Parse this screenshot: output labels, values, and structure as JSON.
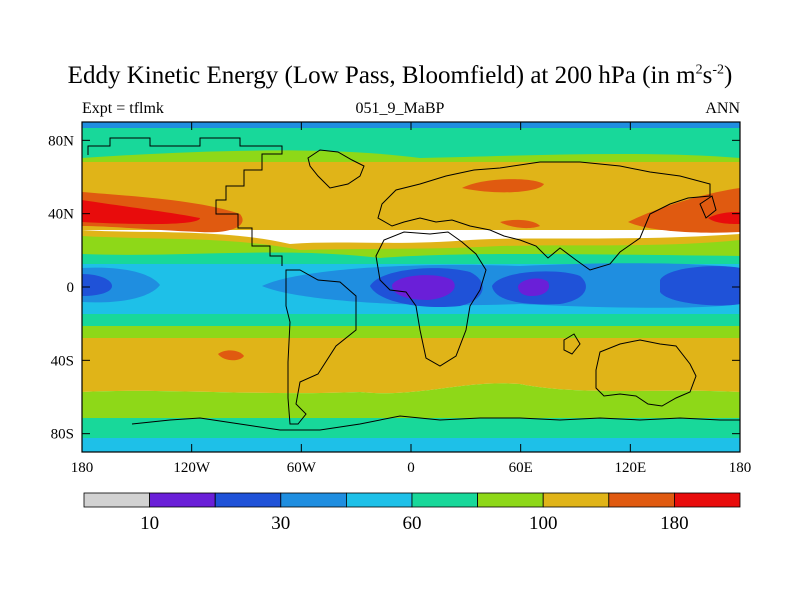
{
  "map": {
    "title_main": "Eddy Kinetic Energy (Low Pass, Bloomfield) at 200 hPa (in m",
    "title_sup1": "2",
    "title_mid": "s",
    "title_sup2": "-2",
    "title_end": ")",
    "subtitle_left": "Expt = tflmk",
    "subtitle_center": "051_9_MaBP",
    "subtitle_right": "ANN",
    "lon_ticks": [
      {
        "lon": -180,
        "label": "180"
      },
      {
        "lon": -120,
        "label": "120W"
      },
      {
        "lon": -60,
        "label": "60W"
      },
      {
        "lon": 0,
        "label": "0"
      },
      {
        "lon": 60,
        "label": "60E"
      },
      {
        "lon": 120,
        "label": "120E"
      },
      {
        "lon": 180,
        "label": "180"
      }
    ],
    "lat_ticks": [
      {
        "lat": 80,
        "label": "80N"
      },
      {
        "lat": 40,
        "label": "40N"
      },
      {
        "lat": 0,
        "label": "0"
      },
      {
        "lat": -40,
        "label": "40S"
      },
      {
        "lat": -80,
        "label": "80S"
      }
    ],
    "lon_range": [
      -180,
      180
    ],
    "lat_range": [
      -90,
      90
    ],
    "colorbar": {
      "colors": [
        "#d2d2d2",
        "#6a1fd8",
        "#1f52d8",
        "#1f8ee0",
        "#1ec0e8",
        "#18d89a",
        "#8ed818",
        "#e0b418",
        "#e05a10",
        "#e80c0c"
      ],
      "labels": [
        {
          "after_box": 1,
          "text": "10"
        },
        {
          "after_box": 3,
          "text": "30"
        },
        {
          "after_box": 5,
          "text": "60"
        },
        {
          "after_box": 7,
          "text": "100"
        },
        {
          "after_box": 9,
          "text": "180"
        }
      ]
    }
  }
}
